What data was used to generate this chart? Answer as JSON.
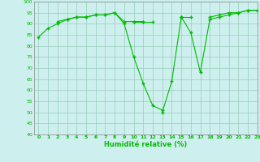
{
  "x": [
    0,
    1,
    2,
    3,
    4,
    5,
    6,
    7,
    8,
    9,
    10,
    11,
    12,
    13,
    14,
    15,
    16,
    17,
    18,
    19,
    20,
    21,
    22,
    23
  ],
  "line1": [
    84,
    88,
    90,
    92,
    93,
    93,
    94,
    94,
    95,
    90,
    75,
    63,
    53,
    51,
    null,
    null,
    null,
    null,
    null,
    null,
    null,
    null,
    null,
    null
  ],
  "line2": [
    null,
    null,
    91,
    92,
    93,
    93,
    94,
    94,
    95,
    91,
    91,
    91,
    null,
    50,
    64,
    93,
    86,
    68,
    92,
    93,
    94,
    95,
    96,
    96
  ],
  "line3": [
    null,
    null,
    null,
    null,
    null,
    null,
    null,
    null,
    null,
    null,
    null,
    null,
    null,
    null,
    null,
    93,
    null,
    null,
    93,
    94,
    95,
    95,
    96,
    96
  ],
  "line4": [
    null,
    null,
    null,
    null,
    null,
    null,
    null,
    null,
    null,
    null,
    91,
    91,
    91,
    null,
    null,
    93,
    93,
    null,
    null,
    null,
    null,
    null,
    null,
    null
  ],
  "xlabel": "Humidité relative (%)",
  "ylim": [
    40,
    100
  ],
  "xlim": [
    -0.5,
    23
  ],
  "yticks": [
    40,
    45,
    50,
    55,
    60,
    65,
    70,
    75,
    80,
    85,
    90,
    95,
    100
  ],
  "xticks": [
    0,
    1,
    2,
    3,
    4,
    5,
    6,
    7,
    8,
    9,
    10,
    11,
    12,
    13,
    14,
    15,
    16,
    17,
    18,
    19,
    20,
    21,
    22,
    23
  ],
  "line_color": "#00bb00",
  "bg_color": "#cdf0ee",
  "grid_color": "#99ccbb",
  "marker": "+",
  "linewidth": 0.8,
  "markersize": 3.5
}
